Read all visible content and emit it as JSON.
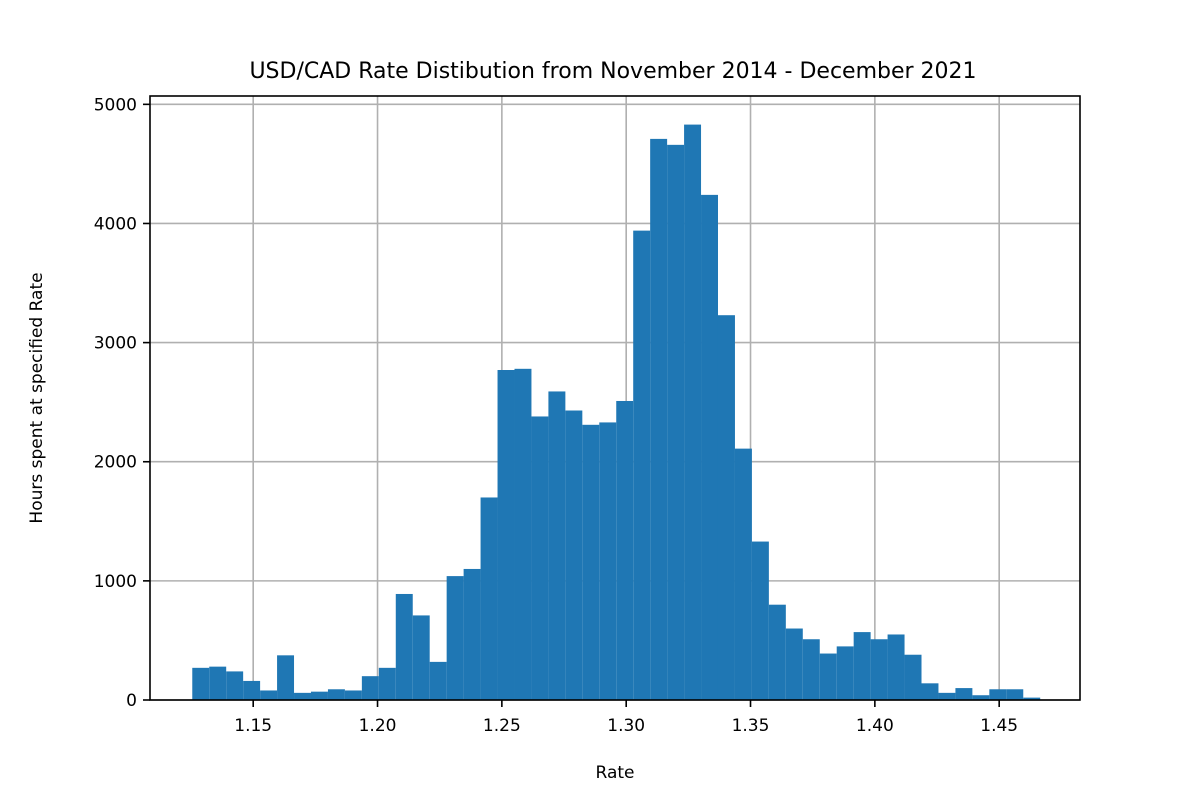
{
  "chart_data": {
    "type": "bar",
    "title": "USD/CAD Rate Distibution from November 2014 - December 2021",
    "xlabel": "Rate",
    "ylabel": "Hours spent at specified Rate",
    "xlim": [
      1.1085,
      1.4825
    ],
    "ylim": [
      0,
      5070
    ],
    "xticks": [
      1.15,
      1.2,
      1.25,
      1.3,
      1.35,
      1.4,
      1.45
    ],
    "xtick_labels": [
      "1.15",
      "1.20",
      "1.25",
      "1.30",
      "1.35",
      "1.40",
      "1.45"
    ],
    "yticks": [
      0,
      1000,
      2000,
      3000,
      4000,
      5000
    ],
    "ytick_labels": [
      "0",
      "1000",
      "2000",
      "3000",
      "4000",
      "5000"
    ],
    "grid": true,
    "bar_color": "#1f77b4",
    "bin_start": 1.1255,
    "bin_width": 0.00682,
    "values": [
      270,
      280,
      240,
      160,
      80,
      375,
      60,
      70,
      90,
      80,
      200,
      270,
      890,
      710,
      320,
      1040,
      1100,
      1700,
      2770,
      2780,
      2380,
      2590,
      2430,
      2310,
      2330,
      2510,
      3940,
      4710,
      4660,
      4830,
      4240,
      3230,
      2110,
      1330,
      800,
      600,
      510,
      390,
      450,
      570,
      510,
      550,
      380,
      140,
      60,
      100,
      40,
      90,
      90,
      20
    ]
  }
}
